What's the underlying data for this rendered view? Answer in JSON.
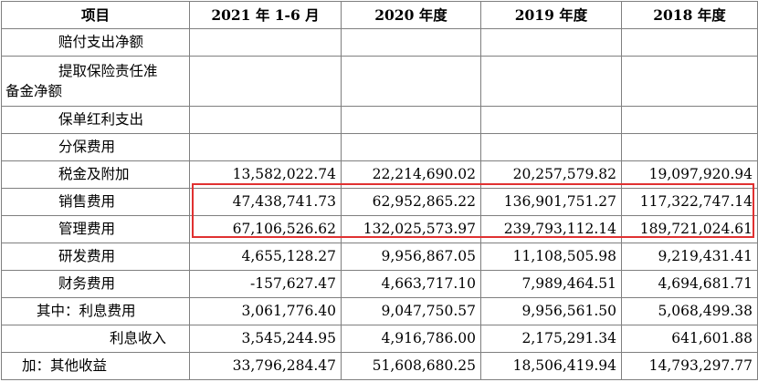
{
  "header": {
    "item": "项目",
    "col1": "2021 年 1-6 月",
    "col2": "2020 年度",
    "col3": "2019 年度",
    "col4": "2018 年度"
  },
  "rows": [
    {
      "label": "赔付支出净额",
      "indent": "single",
      "values": [
        "",
        "",
        "",
        ""
      ]
    },
    {
      "label_line1": "提取保险责任准",
      "label_line2": "备金净额",
      "indent": "wrap",
      "values": [
        "",
        "",
        "",
        ""
      ]
    },
    {
      "label": "保单红利支出",
      "indent": "single",
      "values": [
        "",
        "",
        "",
        ""
      ]
    },
    {
      "label": "分保费用",
      "indent": "single",
      "values": [
        "",
        "",
        "",
        ""
      ]
    },
    {
      "label": "税金及附加",
      "indent": "single",
      "values": [
        "13,582,022.74",
        "22,214,690.02",
        "20,257,579.82",
        "19,097,920.94"
      ]
    },
    {
      "label": "销售费用",
      "indent": "single",
      "values": [
        "47,438,741.73",
        "62,952,865.22",
        "136,901,751.27",
        "117,322,747.14"
      ]
    },
    {
      "label": "管理费用",
      "indent": "single",
      "values": [
        "67,106,526.62",
        "132,025,573.97",
        "239,793,112.14",
        "189,721,024.61"
      ]
    },
    {
      "label": "研发费用",
      "indent": "single",
      "values": [
        "4,655,128.27",
        "9,956,867.05",
        "11,108,505.98",
        "9,219,431.41"
      ]
    },
    {
      "label": "财务费用",
      "indent": "single",
      "values": [
        "-157,627.47",
        "4,663,717.10",
        "7,989,464.51",
        "4,694,681.71"
      ]
    },
    {
      "label": "其中：利息费用",
      "indent": "single",
      "values": [
        "3,061,776.40",
        "9,047,750.57",
        "9,956,561.50",
        "5,068,499.38"
      ]
    },
    {
      "label": "利息收入",
      "indent": "deep",
      "values": [
        "3,545,244.95",
        "4,916,786.00",
        "2,175,291.34",
        "641,601.88"
      ]
    },
    {
      "label": "加：其他收益",
      "indent": "none",
      "values": [
        "33,796,284.47",
        "51,608,680.25",
        "18,506,419.94",
        "14,793,297.77"
      ]
    }
  ],
  "highlight_color": "#e03131"
}
